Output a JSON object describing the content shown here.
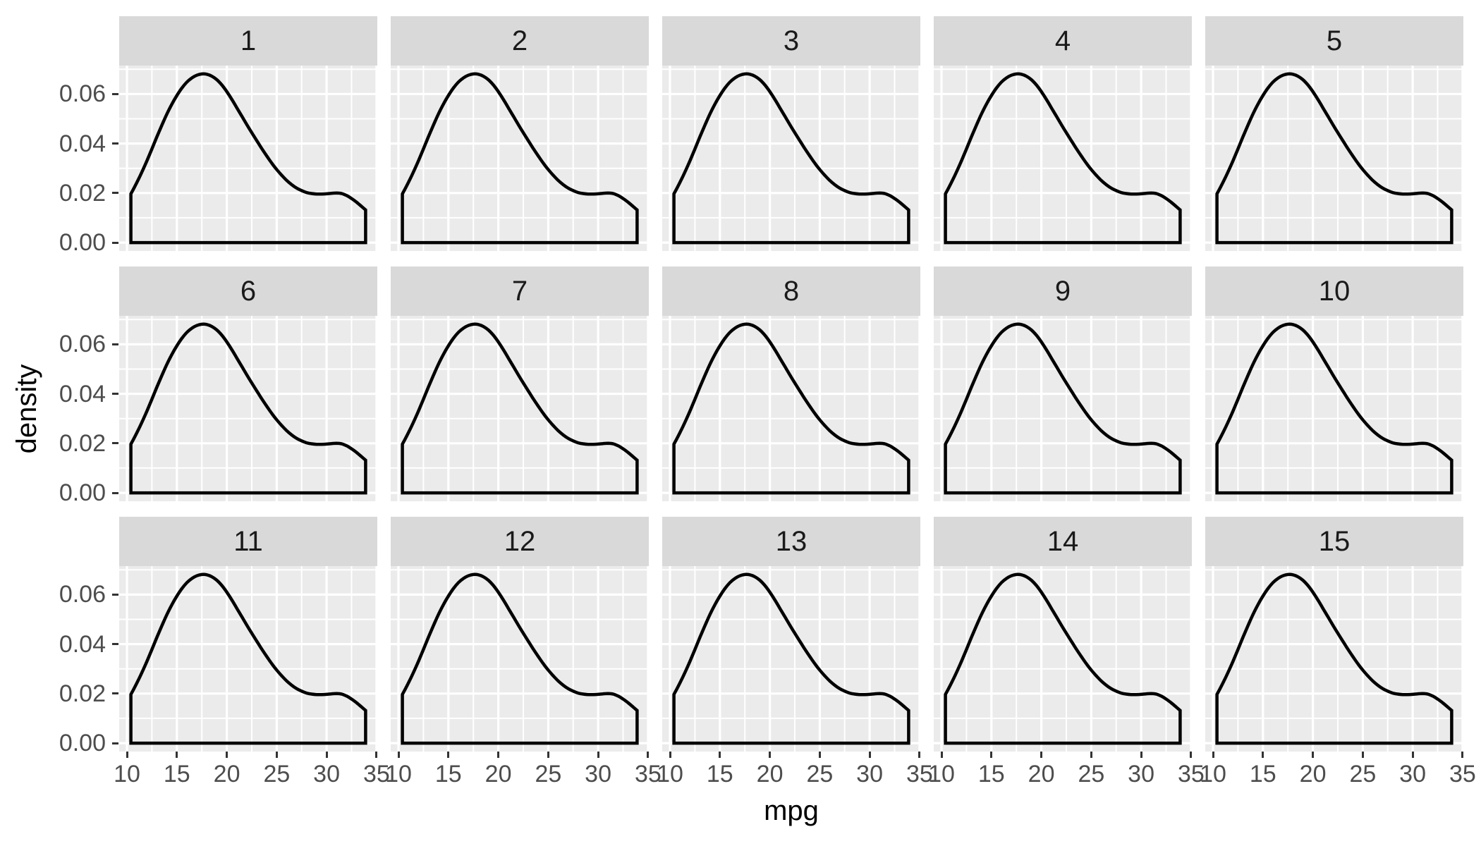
{
  "figure_type": "faceted density plot",
  "axes": {
    "x_title": "mpg",
    "y_title": "density",
    "x_tick_labels": [
      "10",
      "15",
      "20",
      "25",
      "30",
      "35"
    ],
    "y_tick_labels": [
      "0.00",
      "0.02",
      "0.04",
      "0.06"
    ]
  },
  "facets": [
    "1",
    "2",
    "3",
    "4",
    "5",
    "6",
    "7",
    "8",
    "9",
    "10",
    "11",
    "12",
    "13",
    "14",
    "15"
  ],
  "colors": {
    "panel_background": "#EBEBEB",
    "strip_background": "#D9D9D9",
    "gridline": "#FFFFFF",
    "curve": "#000000",
    "tick_text": "#4D4D4D",
    "strip_text": "#1A1A1A",
    "axis_title_text": "#000000",
    "tick_mark": "#333333"
  },
  "chart_data": {
    "type": "area",
    "subtype": "kernel-density-curve",
    "title": "",
    "xlabel": "mpg",
    "ylabel": "density",
    "facet_layout": {
      "rows": 3,
      "cols": 5
    },
    "facet_labels": [
      "1",
      "2",
      "3",
      "4",
      "5",
      "6",
      "7",
      "8",
      "9",
      "10",
      "11",
      "12",
      "13",
      "14",
      "15"
    ],
    "series_note": "identical density curve repeated in all 15 facets",
    "grid": true,
    "legend": "none",
    "x_breaks": [
      10,
      15,
      20,
      25,
      30,
      35
    ],
    "y_breaks": [
      0,
      0.02,
      0.04,
      0.06
    ],
    "x_minor_breaks": [
      12.5,
      17.5,
      22.5,
      27.5,
      32.5
    ],
    "y_minor_breaks": [
      0.01,
      0.03,
      0.05,
      0.07
    ],
    "xlim": [
      9.225,
      35.075
    ],
    "ylim": [
      -0.0034,
      0.0715
    ],
    "density_curve": {
      "x": [
        10.4,
        11,
        11.5,
        12,
        12.5,
        13,
        13.5,
        14,
        14.5,
        15,
        15.5,
        16,
        16.5,
        17,
        17.5,
        18,
        18.5,
        19,
        19.5,
        20,
        20.5,
        21,
        21.5,
        22,
        22.5,
        23,
        23.5,
        24,
        24.5,
        25,
        25.5,
        26,
        26.5,
        27,
        27.5,
        28,
        28.5,
        29,
        29.5,
        30,
        30.5,
        31,
        31.5,
        32,
        32.5,
        33,
        33.5,
        33.9
      ],
      "y": [
        0.0197,
        0.0243,
        0.0285,
        0.033,
        0.0378,
        0.0427,
        0.0474,
        0.0519,
        0.0559,
        0.0594,
        0.0624,
        0.0648,
        0.0665,
        0.0676,
        0.0681,
        0.068,
        0.0672,
        0.0658,
        0.0637,
        0.061,
        0.0579,
        0.0545,
        0.0511,
        0.0477,
        0.0444,
        0.0412,
        0.038,
        0.035,
        0.0321,
        0.0295,
        0.0272,
        0.0251,
        0.0234,
        0.022,
        0.021,
        0.0202,
        0.0198,
        0.0196,
        0.0196,
        0.0197,
        0.0199,
        0.02,
        0.0198,
        0.019,
        0.0178,
        0.0163,
        0.0146,
        0.0132
      ]
    }
  }
}
